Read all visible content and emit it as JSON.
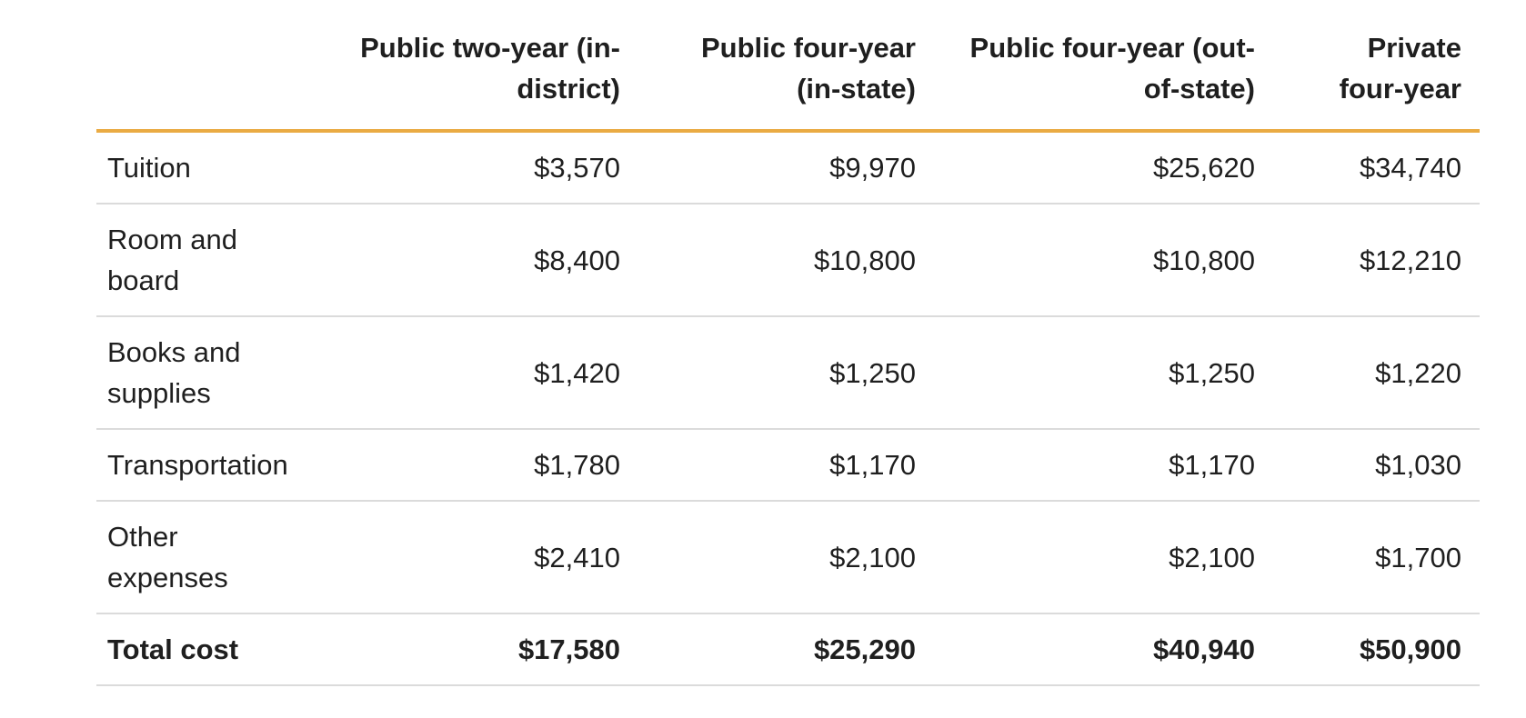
{
  "colors": {
    "header_rule": "#EAAB43",
    "row_divider": "#dbdbdb",
    "text": "#1f1f1f",
    "background": "#ffffff"
  },
  "chart_data": {
    "type": "table",
    "title": "",
    "columns": [
      "",
      "Public two-year (in-district)",
      "Public four-year (in-state)",
      "Public four-year (out-of-state)",
      "Private four-year"
    ],
    "rows": [
      {
        "category": "Tuition",
        "values": [
          3570,
          9970,
          25620,
          34740
        ]
      },
      {
        "category": "Room and board",
        "values": [
          8400,
          10800,
          10800,
          12210
        ]
      },
      {
        "category": "Books and supplies",
        "values": [
          1420,
          1250,
          1250,
          1220
        ]
      },
      {
        "category": "Transportation",
        "values": [
          1780,
          1170,
          1170,
          1030
        ]
      },
      {
        "category": "Other expenses",
        "values": [
          2410,
          2100,
          2100,
          1700
        ]
      },
      {
        "category": "Total cost",
        "values": [
          17580,
          25290,
          40940,
          50900
        ]
      }
    ]
  },
  "table": {
    "header": {
      "cells": [
        {
          "id": "category",
          "label": "",
          "lines": [
            ""
          ]
        },
        {
          "id": "public-two-year-in-district",
          "label": "Public two-year (in-district)",
          "lines": [
            "Public two-year (in-",
            "district)"
          ]
        },
        {
          "id": "public-four-year-in-state",
          "label": "Public four-year (in-state)",
          "lines": [
            "Public four-year",
            "(in-state)"
          ]
        },
        {
          "id": "public-four-year-out-of-state",
          "label": "Public four-year (out-of-state)",
          "lines": [
            "Public four-year (out-",
            "of-state)"
          ]
        },
        {
          "id": "private-four-year",
          "label": "Private four-year",
          "lines": [
            "Private",
            "four-year"
          ]
        }
      ]
    },
    "rows": [
      {
        "id": "tuition",
        "label": "Tuition",
        "label_lines": [
          "Tuition"
        ],
        "values": [
          "$3,570",
          "$9,970",
          "$25,620",
          "$34,740"
        ],
        "bold": false
      },
      {
        "id": "room-and-board",
        "label": "Room and board",
        "label_lines": [
          "Room and",
          "board"
        ],
        "values": [
          "$8,400",
          "$10,800",
          "$10,800",
          "$12,210"
        ],
        "bold": false
      },
      {
        "id": "books-and-supplies",
        "label": "Books and supplies",
        "label_lines": [
          "Books and",
          "supplies"
        ],
        "values": [
          "$1,420",
          "$1,250",
          "$1,250",
          "$1,220"
        ],
        "bold": false
      },
      {
        "id": "transportation",
        "label": "Transportation",
        "label_lines": [
          "Transportation"
        ],
        "values": [
          "$1,780",
          "$1,170",
          "$1,170",
          "$1,030"
        ],
        "bold": false
      },
      {
        "id": "other-expenses",
        "label": "Other expenses",
        "label_lines": [
          "Other",
          "expenses"
        ],
        "values": [
          "$2,410",
          "$2,100",
          "$2,100",
          "$1,700"
        ],
        "bold": false
      },
      {
        "id": "total-cost",
        "label": "Total cost",
        "label_lines": [
          "Total cost"
        ],
        "values": [
          "$17,580",
          "$25,290",
          "$40,940",
          "$50,900"
        ],
        "bold": true
      }
    ]
  }
}
